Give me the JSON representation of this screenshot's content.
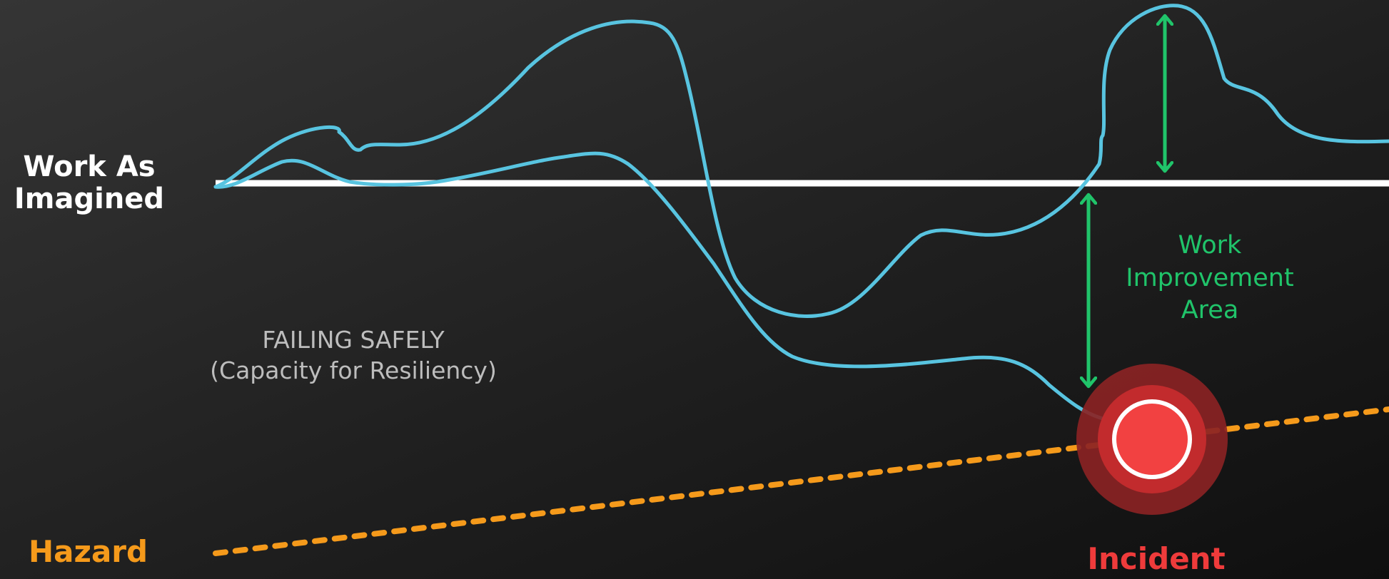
{
  "labels": {
    "work_as_imagined_line1": "Work As",
    "work_as_imagined_line2": "Imagined",
    "hazard": "Hazard",
    "incident": "Incident",
    "failing_safely_line1": "FAILING SAFELY",
    "failing_safely_line2": "(Capacity for Resiliency)",
    "work_improvement_line1": "Work",
    "work_improvement_line2": "Improvement",
    "work_improvement_line3": "Area"
  },
  "colors": {
    "background_light": "#353535",
    "background_dark": "#0f0f0f",
    "work_as_imagined_line": "#ffffff",
    "work_as_done_curves": "#58c4e0",
    "hazard_line": "#f59a1b",
    "improvement_arrows": "#20c46a",
    "incident_marker": "#ef3b3b"
  }
}
